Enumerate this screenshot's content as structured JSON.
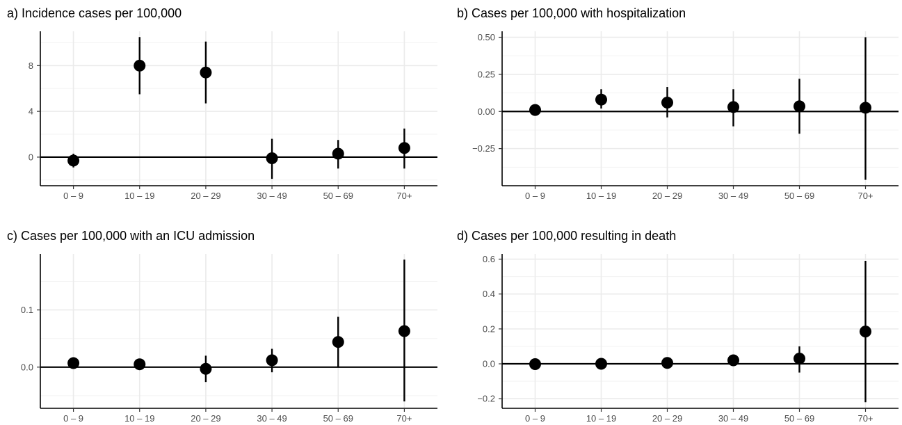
{
  "chart_data": [
    {
      "type": "scatter",
      "title": "a) Incidence cases per 100,000",
      "categories": [
        "0 – 9",
        "10 – 19",
        "20 – 29",
        "30 – 49",
        "50 – 69",
        "70+"
      ],
      "values": [
        -0.3,
        8.0,
        7.4,
        -0.1,
        0.3,
        0.8
      ],
      "lower": [
        -0.9,
        5.5,
        4.7,
        -1.9,
        -1.0,
        -1.0
      ],
      "upper": [
        0.3,
        10.5,
        10.1,
        1.6,
        1.5,
        2.5
      ],
      "yticks": [
        0,
        4,
        8
      ],
      "ytick_labels": [
        "0",
        "4",
        "8"
      ],
      "ylim": [
        -2.5,
        11
      ],
      "reference_line": 0,
      "grid": true
    },
    {
      "type": "scatter",
      "title": "b) Cases per 100,000 with hospitalization",
      "categories": [
        "0 – 9",
        "10 – 19",
        "20 – 29",
        "30 – 49",
        "50 – 69",
        "70+"
      ],
      "values": [
        0.01,
        0.08,
        0.06,
        0.03,
        0.035,
        0.025
      ],
      "lower": [
        0.0,
        0.02,
        -0.04,
        -0.1,
        -0.15,
        -0.46
      ],
      "upper": [
        0.02,
        0.15,
        0.165,
        0.15,
        0.22,
        0.5
      ],
      "yticks": [
        -0.25,
        0.0,
        0.25,
        0.5
      ],
      "ytick_labels": [
        "−0.25",
        "0.00",
        "0.25",
        "0.50"
      ],
      "ylim": [
        -0.5,
        0.54
      ],
      "reference_line": 0,
      "grid": true
    },
    {
      "type": "scatter",
      "title": "c) Cases per 100,000 with an ICU admission",
      "categories": [
        "0 – 9",
        "10 – 19",
        "20 – 29",
        "30 – 49",
        "50 – 69",
        "70+"
      ],
      "values": [
        0.007,
        0.005,
        -0.003,
        0.012,
        0.044,
        0.063
      ],
      "lower": [
        0.001,
        0.001,
        -0.026,
        -0.009,
        0.0,
        -0.06
      ],
      "upper": [
        0.015,
        0.009,
        0.02,
        0.032,
        0.088,
        0.188
      ],
      "yticks": [
        0.0,
        0.1
      ],
      "ytick_labels": [
        "0.0",
        "0.1"
      ],
      "ylim": [
        -0.072,
        0.198
      ],
      "reference_line": 0,
      "grid": true
    },
    {
      "type": "scatter",
      "title": "d) Cases per 100,000 resulting in death",
      "categories": [
        "0 – 9",
        "10 – 19",
        "20 – 29",
        "30 – 49",
        "50 – 69",
        "70+"
      ],
      "values": [
        -0.002,
        0.0,
        0.005,
        0.02,
        0.03,
        0.185
      ],
      "lower": [
        -0.005,
        -0.003,
        -0.003,
        0.005,
        -0.05,
        -0.22
      ],
      "upper": [
        0.002,
        0.003,
        0.013,
        0.035,
        0.1,
        0.59
      ],
      "yticks": [
        -0.2,
        0.0,
        0.2,
        0.4,
        0.6
      ],
      "ytick_labels": [
        "−0.2",
        "0.0",
        "0.2",
        "0.4",
        "0.6"
      ],
      "ylim": [
        -0.255,
        0.63
      ],
      "reference_line": 0,
      "grid": true
    }
  ]
}
